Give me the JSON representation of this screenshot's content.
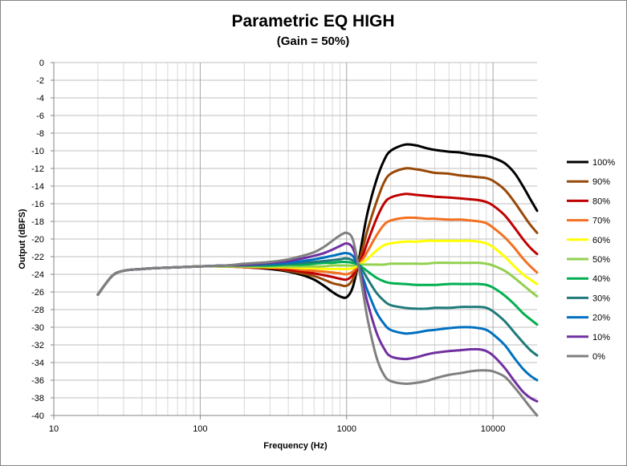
{
  "chart_data": {
    "type": "line",
    "title": "Parametric EQ HIGH",
    "subtitle": "(Gain = 50%)",
    "xlabel": "Frequency (Hz)",
    "ylabel": "Output (dBFS)",
    "xscale": "log",
    "xlim": [
      10,
      20000
    ],
    "ylim": [
      -40,
      0
    ],
    "x_ticks": [
      10,
      100,
      1000,
      10000
    ],
    "x_tick_labels": [
      "10",
      "100",
      "1000",
      "10000"
    ],
    "y_ticks": [
      0,
      -2,
      -4,
      -6,
      -8,
      -10,
      -12,
      -14,
      -16,
      -18,
      -20,
      -22,
      -24,
      -26,
      -28,
      -30,
      -32,
      -34,
      -36,
      -38,
      -40
    ],
    "y_tick_labels": [
      "0",
      "-2",
      "-4",
      "-6",
      "-8",
      "-10",
      "-12",
      "-14",
      "-16",
      "-18",
      "-20",
      "-22",
      "-24",
      "-26",
      "-28",
      "-30",
      "-32",
      "-34",
      "-36",
      "-38",
      "-40"
    ],
    "grid": true,
    "legend_position": "right",
    "x": [
      20,
      25,
      30,
      40,
      50,
      70,
      100,
      150,
      200,
      300,
      400,
      500,
      600,
      700,
      800,
      900,
      1000,
      1100,
      1200,
      1300,
      1400,
      1600,
      1800,
      2000,
      2500,
      3000,
      3500,
      4000,
      5000,
      6000,
      7000,
      8000,
      9000,
      10000,
      12000,
      14000,
      16000,
      18000,
      20000
    ],
    "series": [
      {
        "name": "100%",
        "color": "#000000",
        "values": [
          -26.3,
          -24.2,
          -23.6,
          -23.4,
          -23.3,
          -23.2,
          -23.1,
          -23.1,
          -23.2,
          -23.4,
          -23.7,
          -24.1,
          -24.6,
          -25.3,
          -26.0,
          -26.5,
          -26.6,
          -25.5,
          -22.8,
          -19.5,
          -16.8,
          -13.3,
          -11.1,
          -10.0,
          -9.3,
          -9.4,
          -9.7,
          -9.9,
          -10.1,
          -10.2,
          -10.4,
          -10.5,
          -10.6,
          -10.8,
          -11.4,
          -12.5,
          -14.0,
          -15.5,
          -16.8
        ]
      },
      {
        "name": "90%",
        "color": "#984807",
        "values": [
          -26.3,
          -24.2,
          -23.6,
          -23.4,
          -23.3,
          -23.2,
          -23.1,
          -23.1,
          -23.2,
          -23.3,
          -23.6,
          -23.9,
          -24.2,
          -24.6,
          -25.0,
          -25.2,
          -25.3,
          -24.6,
          -22.9,
          -20.8,
          -18.8,
          -15.8,
          -13.6,
          -12.6,
          -12.0,
          -12.1,
          -12.3,
          -12.5,
          -12.6,
          -12.8,
          -12.9,
          -13.0,
          -13.1,
          -13.4,
          -14.4,
          -15.8,
          -17.2,
          -18.4,
          -19.3
        ]
      },
      {
        "name": "80%",
        "color": "#C00000",
        "values": [
          -26.3,
          -24.2,
          -23.6,
          -23.4,
          -23.3,
          -23.2,
          -23.1,
          -23.1,
          -23.2,
          -23.3,
          -23.5,
          -23.7,
          -23.9,
          -24.1,
          -24.3,
          -24.5,
          -24.6,
          -24.1,
          -23.0,
          -21.7,
          -20.2,
          -17.7,
          -16.0,
          -15.3,
          -14.9,
          -15.0,
          -15.1,
          -15.2,
          -15.3,
          -15.4,
          -15.5,
          -15.6,
          -15.8,
          -16.2,
          -17.3,
          -18.7,
          -20.0,
          -21.0,
          -21.7
        ]
      },
      {
        "name": "70%",
        "color": "#F37021",
        "values": [
          -26.3,
          -24.2,
          -23.6,
          -23.4,
          -23.3,
          -23.2,
          -23.1,
          -23.1,
          -23.2,
          -23.2,
          -23.3,
          -23.5,
          -23.6,
          -23.7,
          -23.8,
          -23.9,
          -24.0,
          -23.7,
          -23.0,
          -22.2,
          -21.3,
          -19.6,
          -18.4,
          -17.9,
          -17.6,
          -17.6,
          -17.7,
          -17.7,
          -17.8,
          -17.8,
          -17.9,
          -18.0,
          -18.2,
          -18.7,
          -19.8,
          -21.0,
          -22.2,
          -23.1,
          -23.8
        ]
      },
      {
        "name": "60%",
        "color": "#FFFF00",
        "values": [
          -26.3,
          -24.2,
          -23.6,
          -23.4,
          -23.3,
          -23.2,
          -23.1,
          -23.1,
          -23.1,
          -23.2,
          -23.2,
          -23.3,
          -23.3,
          -23.4,
          -23.4,
          -23.4,
          -23.4,
          -23.3,
          -23.0,
          -22.6,
          -22.2,
          -21.3,
          -20.7,
          -20.5,
          -20.3,
          -20.3,
          -20.2,
          -20.2,
          -20.2,
          -20.2,
          -20.2,
          -20.3,
          -20.5,
          -20.9,
          -22.0,
          -23.1,
          -24.0,
          -24.6,
          -25.1
        ]
      },
      {
        "name": "50%",
        "color": "#92D050",
        "values": [
          -26.3,
          -24.2,
          -23.6,
          -23.4,
          -23.3,
          -23.2,
          -23.1,
          -23.1,
          -23.1,
          -23.1,
          -23.1,
          -23.1,
          -23.1,
          -23.1,
          -23.0,
          -23.0,
          -23.0,
          -23.0,
          -22.9,
          -22.9,
          -22.9,
          -22.9,
          -22.9,
          -22.8,
          -22.8,
          -22.8,
          -22.8,
          -22.7,
          -22.7,
          -22.7,
          -22.7,
          -22.7,
          -22.8,
          -23.0,
          -23.6,
          -24.4,
          -25.2,
          -25.9,
          -26.5
        ]
      },
      {
        "name": "40%",
        "color": "#00B050",
        "values": [
          -26.3,
          -24.2,
          -23.6,
          -23.4,
          -23.3,
          -23.2,
          -23.1,
          -23.0,
          -23.0,
          -23.0,
          -22.9,
          -22.9,
          -22.8,
          -22.7,
          -22.7,
          -22.6,
          -22.6,
          -22.7,
          -22.9,
          -23.3,
          -23.7,
          -24.4,
          -24.8,
          -25.0,
          -25.1,
          -25.2,
          -25.2,
          -25.2,
          -25.1,
          -25.1,
          -25.1,
          -25.1,
          -25.2,
          -25.5,
          -26.4,
          -27.4,
          -28.4,
          -29.1,
          -29.7
        ]
      },
      {
        "name": "30%",
        "color": "#1F7A7A",
        "values": [
          -26.3,
          -24.2,
          -23.6,
          -23.4,
          -23.3,
          -23.2,
          -23.1,
          -23.0,
          -23.0,
          -22.9,
          -22.8,
          -22.7,
          -22.6,
          -22.5,
          -22.4,
          -22.3,
          -22.2,
          -22.4,
          -22.9,
          -23.7,
          -24.6,
          -26.1,
          -27.0,
          -27.5,
          -27.8,
          -27.9,
          -27.9,
          -27.8,
          -27.8,
          -27.7,
          -27.7,
          -27.7,
          -27.8,
          -28.2,
          -29.3,
          -30.6,
          -31.7,
          -32.6,
          -33.2
        ]
      },
      {
        "name": "20%",
        "color": "#0070C0",
        "values": [
          -26.3,
          -24.2,
          -23.6,
          -23.4,
          -23.3,
          -23.2,
          -23.1,
          -23.0,
          -22.9,
          -22.8,
          -22.7,
          -22.5,
          -22.3,
          -22.1,
          -21.9,
          -21.7,
          -21.6,
          -21.9,
          -23.0,
          -24.5,
          -26.0,
          -28.3,
          -29.6,
          -30.3,
          -30.7,
          -30.6,
          -30.4,
          -30.3,
          -30.1,
          -30.0,
          -30.0,
          -30.1,
          -30.3,
          -30.8,
          -32.0,
          -33.5,
          -34.7,
          -35.5,
          -36.0
        ]
      },
      {
        "name": "10%",
        "color": "#7030A0",
        "values": [
          -26.3,
          -24.2,
          -23.6,
          -23.4,
          -23.3,
          -23.2,
          -23.1,
          -23.0,
          -22.9,
          -22.7,
          -22.5,
          -22.2,
          -21.9,
          -21.6,
          -21.2,
          -20.8,
          -20.5,
          -21.0,
          -22.9,
          -25.2,
          -27.4,
          -30.6,
          -32.4,
          -33.3,
          -33.6,
          -33.4,
          -33.1,
          -32.9,
          -32.7,
          -32.6,
          -32.5,
          -32.5,
          -32.7,
          -33.2,
          -34.6,
          -36.1,
          -37.3,
          -38.0,
          -38.4
        ]
      },
      {
        "name": "0%",
        "color": "#808080",
        "values": [
          -26.3,
          -24.2,
          -23.6,
          -23.4,
          -23.3,
          -23.2,
          -23.1,
          -23.0,
          -22.8,
          -22.6,
          -22.3,
          -21.9,
          -21.5,
          -20.9,
          -20.2,
          -19.6,
          -19.3,
          -20.0,
          -22.9,
          -26.2,
          -29.3,
          -33.4,
          -35.4,
          -36.1,
          -36.4,
          -36.3,
          -36.1,
          -35.8,
          -35.4,
          -35.2,
          -35.0,
          -34.9,
          -34.9,
          -35.0,
          -35.6,
          -36.8,
          -38.0,
          -39.1,
          -40.0
        ]
      }
    ]
  }
}
